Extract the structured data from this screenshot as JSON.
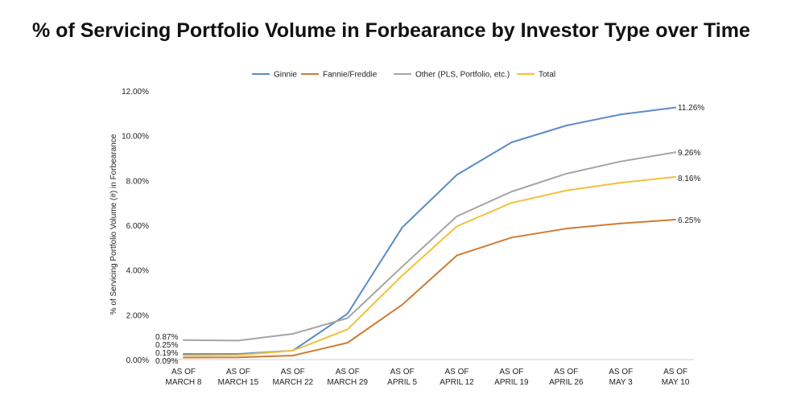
{
  "title": "% of Servicing Portfolio Volume in Forbearance by Investor Type over Time",
  "chart_data": {
    "type": "line",
    "title": "% of Servicing Portfolio Volume in Forbearance by Investor Type over Time",
    "xlabel": "",
    "ylabel": "% of Servicing Portfolio Volume (#) in Forbearance",
    "ylim": [
      0,
      12
    ],
    "yticks": [
      "0.00%",
      "2.00%",
      "4.00%",
      "6.00%",
      "8.00%",
      "10.00%",
      "12.00%"
    ],
    "grid": false,
    "legend_position": "top",
    "categories": [
      [
        "AS OF",
        "MARCH 8"
      ],
      [
        "AS OF",
        "MARCH 15"
      ],
      [
        "AS OF",
        "MARCH 22"
      ],
      [
        "AS OF",
        "MARCH 29"
      ],
      [
        "AS OF",
        "APRIL 5"
      ],
      [
        "AS OF",
        "APRIL 12"
      ],
      [
        "AS OF",
        "APRIL 19"
      ],
      [
        "AS OF",
        "APRIL 26"
      ],
      [
        "AS OF",
        "MAY 3"
      ],
      [
        "AS OF",
        "MAY 10"
      ]
    ],
    "series": [
      {
        "name": "Ginnie",
        "color": "#5b8bc9",
        "values": [
          0.25,
          0.25,
          0.4,
          2.05,
          5.9,
          8.25,
          9.7,
          10.45,
          10.95,
          11.26
        ]
      },
      {
        "name": "Fannie/Freddie",
        "color": "#cf7b35",
        "values": [
          0.09,
          0.1,
          0.18,
          0.75,
          2.45,
          4.65,
          5.45,
          5.85,
          6.08,
          6.25
        ]
      },
      {
        "name": "Other (PLS, Portfolio, etc.)",
        "color": "#a5a5a5",
        "values": [
          0.87,
          0.85,
          1.15,
          1.85,
          4.15,
          6.4,
          7.5,
          8.3,
          8.85,
          9.26
        ]
      },
      {
        "name": "Total",
        "color": "#f2c03a",
        "values": [
          0.19,
          0.2,
          0.4,
          1.35,
          3.75,
          5.95,
          7.0,
          7.55,
          7.9,
          8.16
        ]
      }
    ],
    "start_labels": [
      "0.87%",
      "0.25%",
      "0.19%",
      "0.09%"
    ],
    "end_labels": [
      "11.26%",
      "9.26%",
      "8.16%",
      "6.25%"
    ]
  }
}
